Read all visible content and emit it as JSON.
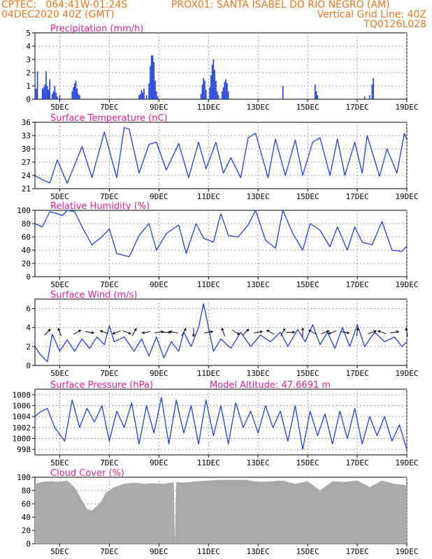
{
  "header": {
    "line1_left": "CPTEC:   064:41W-01:24S",
    "line1_right": "PROX01: SANTA ISABEL DO RIO NEGRO (AM)",
    "line2_left": "04DEC2020 40Z (GMT)",
    "line2_right": "Vertical Grid Line: 40Z",
    "line3_right": "TQ0126L028"
  },
  "colors": {
    "header": "#e8761e",
    "title": "#e0209a",
    "line": "#1f3fdc",
    "bar": "#1f3fdc",
    "cloud": "#a9a9a9"
  },
  "x_axis": {
    "start_day": 4,
    "end_day": 19,
    "tick_labels": [
      "5DEC",
      "7DEC",
      "9DEC",
      "11DEC",
      "13DEC",
      "15DEC",
      "17DEC",
      "19DEC"
    ],
    "tick_days": [
      5,
      7,
      9,
      11,
      13,
      15,
      17,
      19
    ]
  },
  "chart_data": [
    {
      "type": "bar",
      "title": "Precipitation (mm/h)",
      "ylim": [
        0,
        5
      ],
      "yticks": [
        "0",
        "1",
        "2",
        "3",
        "4",
        "5"
      ],
      "grid": true,
      "x": [
        4.05,
        4.1,
        4.3,
        4.35,
        4.4,
        4.45,
        4.5,
        4.55,
        4.6,
        4.7,
        4.75,
        4.8,
        4.85,
        4.9,
        5.0,
        5.5,
        5.55,
        5.6,
        5.65,
        5.7,
        5.75,
        5.8,
        8.2,
        8.25,
        8.3,
        8.35,
        8.4,
        8.5,
        8.6,
        8.65,
        8.7,
        8.75,
        8.8,
        8.85,
        8.9,
        8.95,
        10.7,
        10.75,
        10.8,
        10.85,
        10.9,
        11.05,
        11.1,
        11.15,
        11.2,
        11.25,
        11.3,
        11.35,
        11.4,
        11.55,
        11.6,
        11.65,
        11.7,
        11.75,
        11.8,
        14.0,
        15.3,
        15.35,
        15.4,
        17.3,
        17.5,
        17.6,
        17.65
      ],
      "values": [
        0.8,
        2.1,
        0.8,
        0.9,
        1.1,
        2.1,
        1.0,
        0.7,
        1.5,
        0.4,
        0.6,
        1.0,
        0.5,
        0.2,
        0.3,
        0.6,
        0.9,
        1.2,
        1.4,
        0.8,
        0.4,
        0.3,
        0.3,
        0.4,
        0.7,
        0.5,
        0.8,
        0.3,
        1.2,
        2.5,
        3.3,
        3.3,
        2.8,
        1.4,
        0.6,
        0.2,
        0.4,
        1.1,
        1.6,
        1.4,
        0.7,
        0.9,
        1.8,
        2.6,
        3.0,
        2.2,
        1.4,
        0.6,
        0.3,
        0.6,
        0.9,
        1.3,
        1.5,
        1.2,
        0.6,
        1.0,
        1.1,
        0.6,
        0.3,
        0.2,
        0.3,
        1.1,
        1.6
      ]
    },
    {
      "type": "line",
      "title": "Surface Temperature (nC)",
      "ylim": [
        21,
        36
      ],
      "yticks": [
        "21",
        "24",
        "27",
        "30",
        "33",
        "36"
      ],
      "grid": true,
      "x": [
        4.0,
        4.3,
        4.6,
        4.9,
        5.3,
        5.9,
        6.3,
        6.8,
        7.3,
        7.6,
        7.8,
        8.2,
        8.6,
        8.9,
        9.3,
        9.8,
        10.2,
        10.6,
        10.9,
        11.3,
        11.6,
        11.9,
        12.3,
        12.6,
        12.9,
        13.4,
        13.7,
        14.1,
        14.5,
        14.8,
        15.2,
        15.5,
        15.9,
        16.2,
        16.5,
        16.9,
        17.2,
        17.4,
        17.9,
        18.2,
        18.6,
        18.9,
        19.0
      ],
      "values": [
        24.0,
        23.0,
        22.3,
        27.5,
        22.2,
        30.5,
        23.5,
        33.8,
        23.5,
        34.8,
        34.5,
        24.5,
        31.0,
        31.5,
        25.2,
        31.2,
        23.5,
        31.5,
        25.5,
        31.5,
        24.5,
        28.0,
        23.5,
        32.5,
        33.5,
        23.5,
        32.2,
        24.0,
        32.0,
        24.0,
        31.5,
        32.5,
        24.0,
        32.2,
        24.0,
        31.5,
        24.5,
        33.0,
        23.8,
        30.0,
        24.5,
        33.5,
        32.0
      ]
    },
    {
      "type": "line",
      "title": "Relative Humidity (%)",
      "ylim": [
        0,
        100
      ],
      "yticks": [
        "0",
        "20",
        "40",
        "60",
        "80",
        "100"
      ],
      "grid": true,
      "x": [
        4.0,
        4.3,
        4.6,
        4.9,
        5.1,
        5.3,
        5.6,
        5.9,
        6.3,
        6.7,
        7.0,
        7.3,
        7.8,
        8.2,
        8.6,
        8.9,
        9.3,
        9.8,
        10.1,
        10.5,
        10.8,
        11.2,
        11.5,
        11.8,
        12.2,
        12.6,
        12.9,
        13.3,
        13.7,
        14.0,
        14.4,
        14.8,
        15.1,
        15.5,
        15.9,
        16.2,
        16.6,
        16.9,
        17.2,
        17.6,
        18.0,
        18.4,
        18.8,
        19.0
      ],
      "values": [
        80,
        75,
        98,
        95,
        92,
        100,
        98,
        75,
        48,
        60,
        72,
        35,
        30,
        62,
        80,
        40,
        65,
        78,
        35,
        80,
        58,
        52,
        95,
        62,
        60,
        78,
        100,
        55,
        43,
        100,
        65,
        40,
        80,
        70,
        45,
        75,
        40,
        75,
        52,
        48,
        83,
        40,
        38,
        46
      ]
    },
    {
      "type": "line",
      "title": "Surface Wind (m/s)",
      "ylim": [
        0,
        7
      ],
      "yticks": [
        "0",
        "2",
        "4",
        "6"
      ],
      "grid": true,
      "x": [
        4.0,
        4.2,
        4.5,
        4.7,
        5.0,
        5.3,
        5.6,
        5.9,
        6.2,
        6.5,
        6.8,
        7.0,
        7.2,
        7.6,
        8.0,
        8.3,
        8.6,
        8.9,
        9.2,
        9.5,
        9.8,
        10.0,
        10.3,
        10.6,
        10.8,
        11.0,
        11.2,
        11.5,
        11.9,
        12.3,
        12.7,
        13.1,
        13.5,
        13.9,
        14.2,
        14.6,
        14.9,
        15.2,
        15.5,
        15.8,
        16.1,
        16.4,
        16.7,
        17.0,
        17.3,
        17.7,
        18.1,
        18.5,
        18.8,
        19.0
      ],
      "values": [
        2.0,
        1.2,
        0.4,
        3.3,
        1.5,
        2.7,
        1.5,
        2.8,
        1.8,
        3.0,
        2.2,
        4.2,
        2.5,
        3.0,
        1.5,
        2.8,
        1.0,
        3.0,
        0.8,
        2.5,
        1.5,
        3.5,
        2.0,
        4.0,
        6.5,
        4.0,
        1.5,
        2.8,
        1.8,
        3.5,
        2.0,
        3.2,
        2.5,
        3.5,
        2.0,
        3.8,
        2.5,
        4.3,
        2.2,
        3.5,
        1.8,
        4.0,
        2.0,
        4.3,
        2.0,
        3.5,
        2.5,
        3.0,
        2.0,
        2.5
      ],
      "arrows_x": [
        4.5,
        5.0,
        5.7,
        6.2,
        6.8,
        7.3,
        7.7,
        8.0,
        8.5,
        9.0,
        9.3,
        9.6,
        10.0,
        10.4,
        11.0,
        11.6,
        12.1,
        12.5,
        13.0,
        13.5,
        14.0,
        14.3,
        14.8,
        15.2,
        15.7,
        16.0,
        16.5,
        17.0,
        17.6,
        18.0,
        18.5,
        19.0
      ],
      "arrows_angle": [
        -45,
        -110,
        -30,
        10,
        -160,
        160,
        20,
        -60,
        170,
        -10,
        0,
        -170,
        -60,
        90,
        -10,
        -110,
        30,
        -45,
        -10,
        -150,
        -60,
        0,
        -90,
        -150,
        -20,
        160,
        10,
        -80,
        -20,
        -160,
        -10,
        -100
      ]
    },
    {
      "type": "line",
      "title": "Surface Pressure (hPa)",
      "annotation": "Model Altitude: 47.6691 m",
      "ylim": [
        997,
        1009
      ],
      "yticks": [
        "998",
        "1000",
        "1002",
        "1004",
        "1006",
        "1008"
      ],
      "grid": true,
      "x": [
        4.0,
        4.2,
        4.5,
        4.8,
        5.2,
        5.5,
        5.8,
        6.1,
        6.4,
        6.7,
        7.0,
        7.3,
        7.6,
        7.9,
        8.2,
        8.5,
        8.8,
        9.1,
        9.4,
        9.7,
        10.0,
        10.3,
        10.6,
        10.9,
        11.2,
        11.5,
        11.8,
        12.1,
        12.4,
        12.7,
        13.0,
        13.3,
        13.6,
        13.9,
        14.2,
        14.5,
        14.8,
        15.1,
        15.4,
        15.7,
        16.0,
        16.3,
        16.6,
        16.9,
        17.2,
        17.5,
        17.8,
        18.1,
        18.4,
        18.7,
        19.0
      ],
      "values": [
        1004.0,
        1004.8,
        1005.5,
        1002.0,
        999.5,
        1007.0,
        1002.0,
        1005.5,
        1003.0,
        1006.0,
        999.5,
        1005.0,
        1002.0,
        1006.5,
        999.0,
        1006.0,
        1001.0,
        1007.5,
        999.0,
        1007.0,
        1001.0,
        1006.0,
        999.0,
        1007.0,
        1000.5,
        1006.0,
        999.0,
        1006.5,
        1002.0,
        1005.0,
        1001.0,
        1006.0,
        1002.0,
        1005.0,
        999.5,
        1006.0,
        998.0,
        1005.0,
        1000.5,
        1004.5,
        999.0,
        1005.0,
        1000.0,
        1005.5,
        999.0,
        1004.0,
        1000.5,
        1004.0,
        999.5,
        1002.5,
        998.0
      ]
    },
    {
      "type": "area",
      "title": "Cloud Cover (%)",
      "ylim": [
        0,
        100
      ],
      "yticks": [
        "0",
        "20",
        "40",
        "60",
        "80",
        "100"
      ],
      "grid": true,
      "x": [
        4.0,
        4.3,
        4.6,
        5.0,
        5.3,
        5.6,
        5.9,
        6.1,
        6.3,
        6.6,
        6.9,
        7.2,
        7.6,
        8.0,
        8.4,
        8.8,
        9.2,
        9.5,
        9.6,
        9.65,
        9.7,
        10.0,
        10.5,
        11.0,
        11.5,
        12.0,
        12.5,
        13.0,
        13.5,
        14.0,
        14.5,
        15.0,
        15.5,
        16.0,
        16.5,
        17.0,
        17.5,
        18.0,
        18.5,
        19.0
      ],
      "values": [
        90,
        93,
        94,
        93,
        95,
        85,
        65,
        52,
        50,
        60,
        78,
        85,
        90,
        92,
        90,
        91,
        90,
        92,
        92,
        0,
        93,
        92,
        94,
        95,
        96,
        96,
        96,
        93,
        94,
        95,
        90,
        94,
        80,
        94,
        93,
        95,
        85,
        95,
        90,
        88
      ]
    }
  ]
}
